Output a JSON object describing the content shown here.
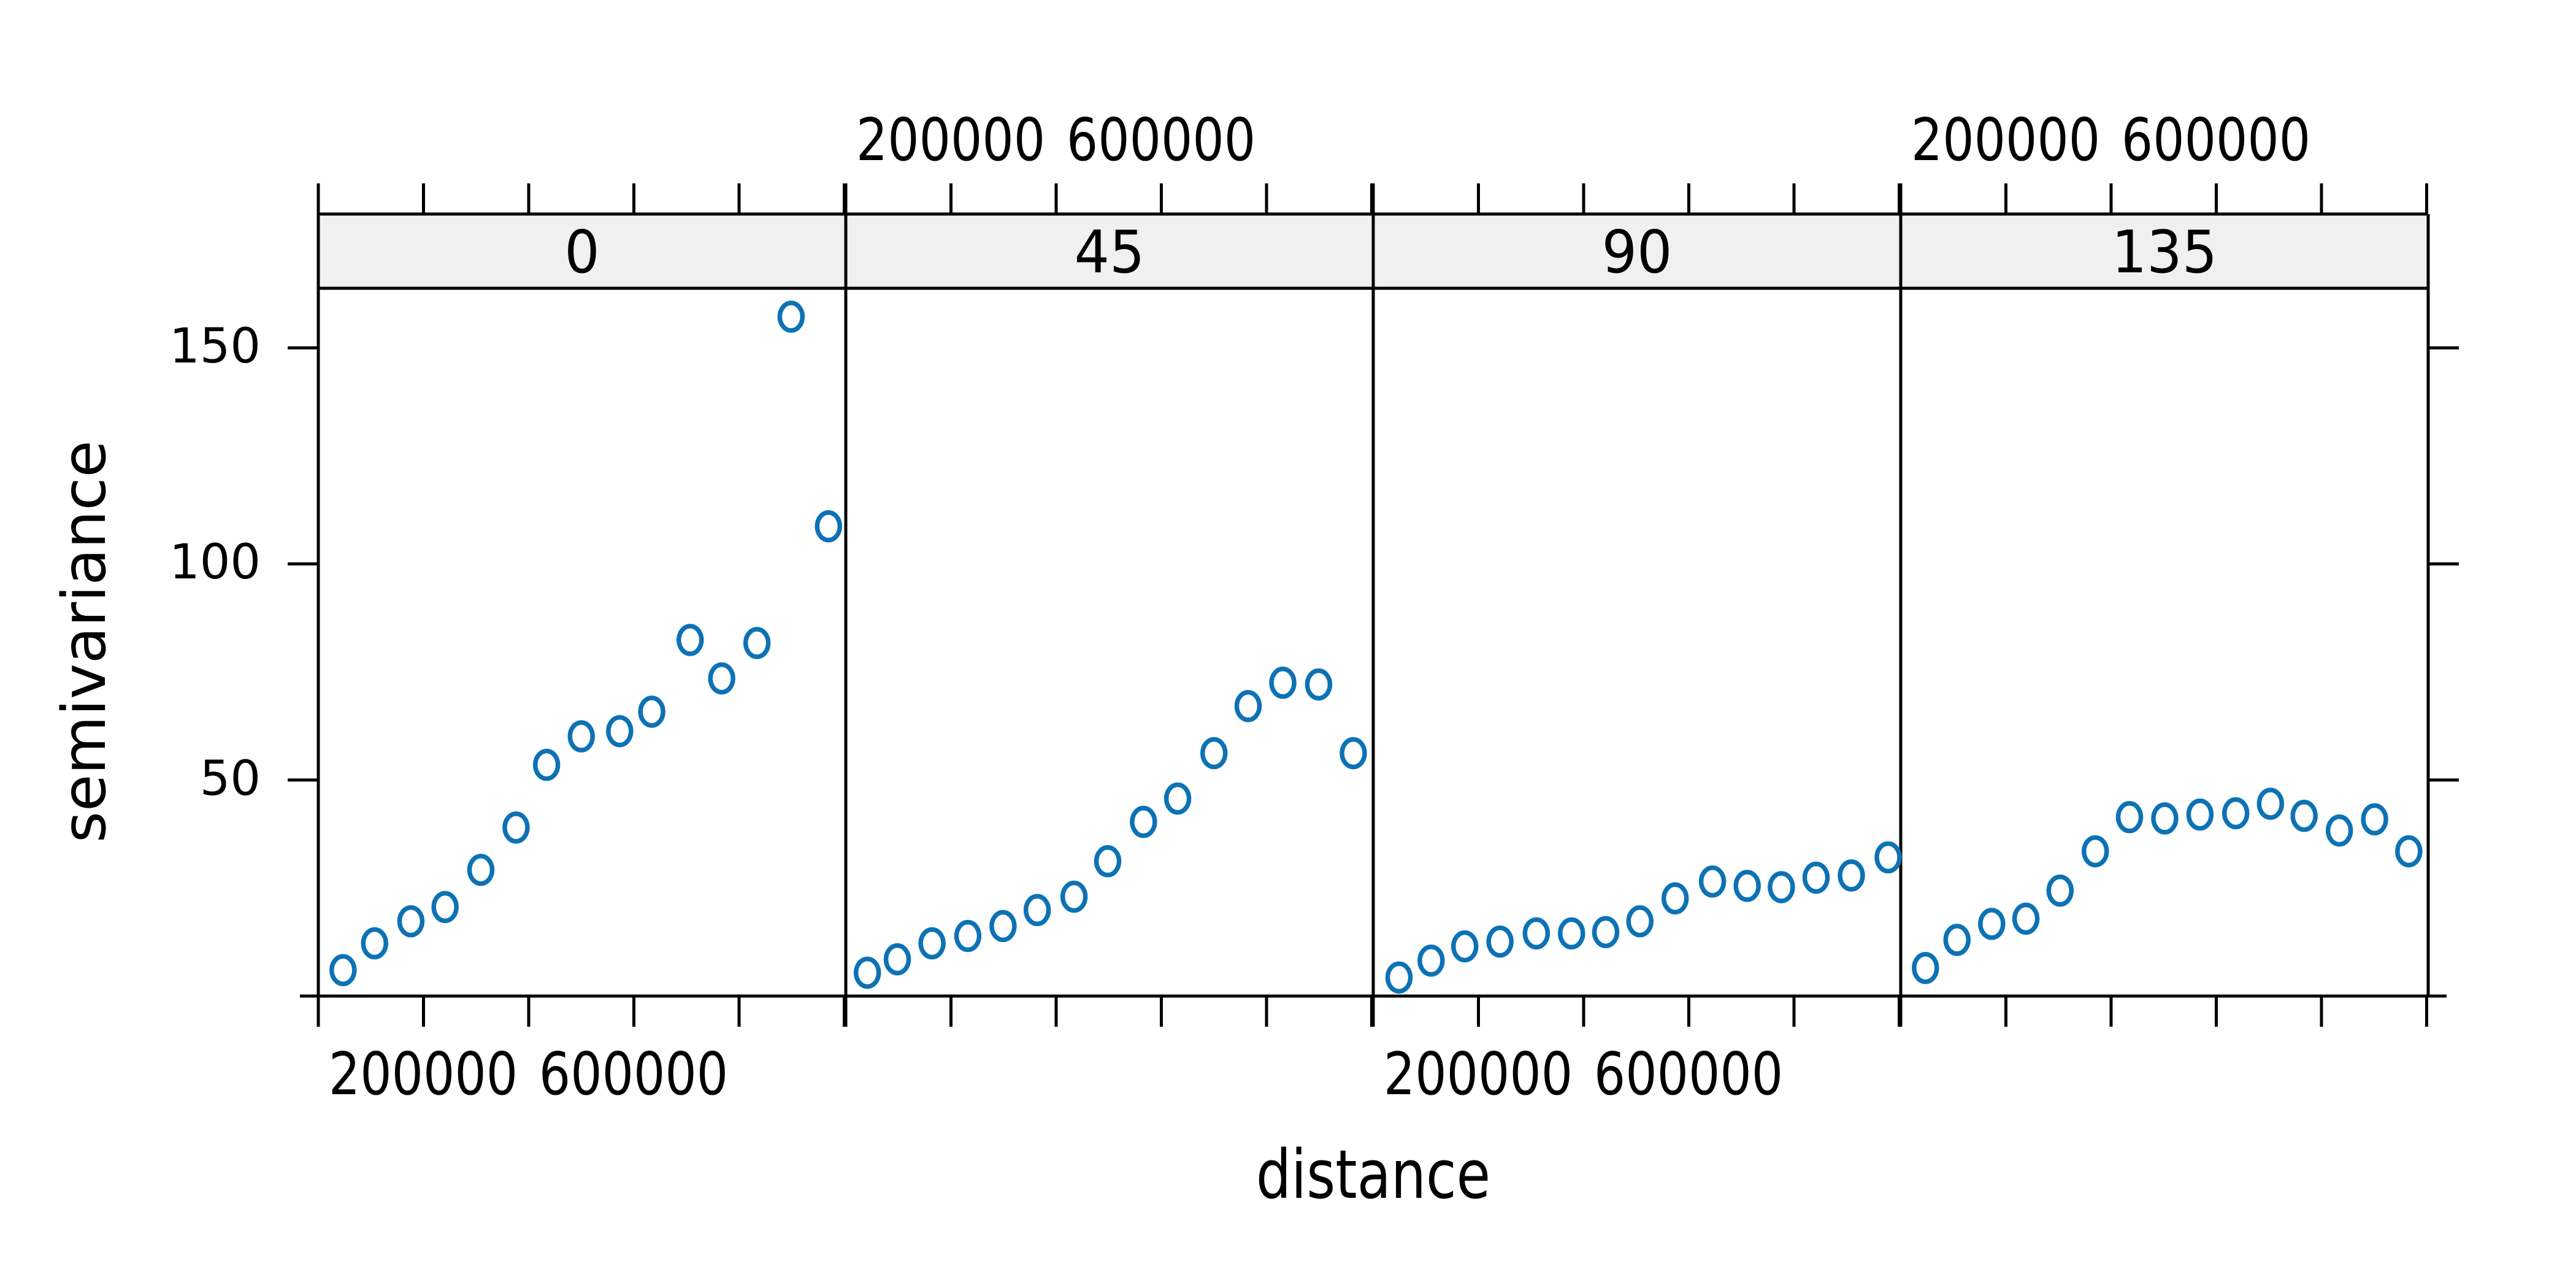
{
  "chart_data": {
    "type": "scatter",
    "title": "",
    "xlabel": "distance",
    "ylabel": "semivariance",
    "panel_variable_values": [
      "0",
      "45",
      "90",
      "135"
    ],
    "x_ticks": [
      0,
      200000,
      400000,
      600000,
      800000,
      1000000
    ],
    "x_labeled_ticks": [
      200000,
      600000
    ],
    "y_ticks": [
      50,
      100,
      150
    ],
    "xlim": [
      0,
      1002000
    ],
    "ylim": [
      0,
      163.8
    ],
    "grid": false,
    "legend": "none",
    "marker": {
      "shape": "open-circle",
      "color": "#0d72b5"
    },
    "series": [
      {
        "name": "0",
        "x": [
          47000,
          107000,
          176000,
          241000,
          309000,
          376000,
          434000,
          500000,
          573000,
          634000,
          707000,
          767000,
          834000,
          899000,
          970000
        ],
        "y": [
          6.0,
          12.2,
          17.3,
          20.6,
          29.2,
          39.0,
          53.5,
          60.1,
          61.3,
          65.8,
          82.4,
          73.5,
          81.7,
          157.2,
          108.7
        ]
      },
      {
        "name": "45",
        "x": [
          41000,
          98000,
          164000,
          232000,
          299000,
          364000,
          434000,
          498000,
          566000,
          631000,
          700000,
          765000,
          831000,
          899000,
          965000
        ],
        "y": [
          5.4,
          8.5,
          12.2,
          13.9,
          16.2,
          19.9,
          23.0,
          31.2,
          40.3,
          45.7,
          56.2,
          67.1,
          72.5,
          72.1,
          56.2
        ]
      },
      {
        "name": "90",
        "x": [
          49000,
          110000,
          174000,
          241000,
          310000,
          377000,
          442000,
          507000,
          574000,
          645000,
          711000,
          776000,
          842000,
          909000,
          979000
        ],
        "y": [
          4.3,
          8.2,
          11.5,
          12.6,
          14.5,
          14.5,
          14.8,
          17.3,
          22.6,
          26.5,
          25.5,
          25.2,
          27.4,
          27.9,
          32.1
        ]
      },
      {
        "name": "135",
        "x": [
          47000,
          107000,
          173000,
          238000,
          303000,
          370000,
          435000,
          502000,
          569000,
          637000,
          703000,
          767000,
          834000,
          901000,
          966000
        ],
        "y": [
          6.5,
          13.0,
          16.7,
          17.9,
          24.4,
          33.5,
          41.4,
          41.1,
          42.0,
          42.3,
          44.5,
          41.7,
          38.3,
          40.9,
          33.5
        ]
      }
    ]
  },
  "labels": {
    "ylabel": "semivariance",
    "xlabel": "distance",
    "strip": [
      "0",
      "45",
      "90",
      "135"
    ],
    "y_tick_labels": [
      "50",
      "100",
      "150"
    ],
    "x_tick_labels": [
      "200000",
      "600000"
    ]
  },
  "colors": {
    "marker": "#0d72b5",
    "strip_fill": "#f0f0f0",
    "axis": "#000000",
    "background": "#ffffff"
  }
}
